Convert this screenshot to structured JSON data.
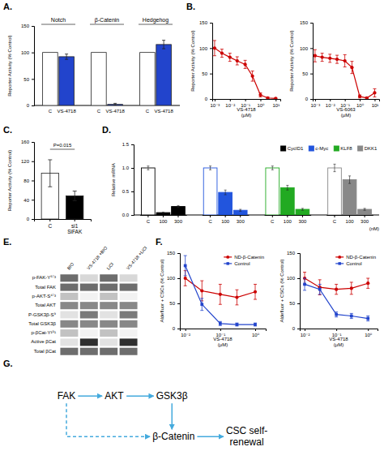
{
  "chart_data": [
    {
      "type": "bar",
      "title": "A.",
      "ylabel": "Reporter Activity (% Control)",
      "categories": [
        "Notch",
        "β-Catenin",
        "Hedgehog"
      ],
      "series": [
        {
          "name": "C",
          "color": "white",
          "values": [
            100,
            100,
            100
          ]
        },
        {
          "name": "VS-4718",
          "color": "#2244cc",
          "values": [
            92,
            2,
            115
          ],
          "errors": [
            5,
            2,
            8
          ]
        }
      ],
      "ylim": [
        0,
        150
      ],
      "yticks": [
        0,
        50,
        100,
        150
      ]
    },
    {
      "type": "line",
      "title": "B.",
      "xlabel": "VS-4718\n(μM)",
      "ylabel": "Reporter Activity (% Control)",
      "x": [
        0.001,
        0.003,
        0.01,
        0.03,
        0.1,
        0.3,
        1,
        3,
        10
      ],
      "series": [
        {
          "color": "#cc0000",
          "marker": "circle",
          "values": [
            100,
            90,
            82,
            75,
            68,
            45,
            8,
            2,
            1
          ],
          "errors": [
            15,
            8,
            8,
            8,
            8,
            10,
            4,
            2,
            1
          ]
        }
      ],
      "log": "x",
      "xlim": [
        0.0007,
        20
      ],
      "xticks": [
        {
          "value": 0.001,
          "label": "10⁻³"
        },
        {
          "value": 0.01,
          "label": "10⁻²"
        },
        {
          "value": 0.1,
          "label": "10⁻¹"
        },
        {
          "value": 1,
          "label": "10⁰"
        },
        {
          "value": 10,
          "label": "10¹"
        }
      ],
      "ylim": [
        0,
        150
      ],
      "yticks": [
        0,
        50,
        100,
        150
      ]
    },
    {
      "type": "line",
      "xlabel": "VS-6063\n(μM)",
      "ylabel": "Reporter Activity (% Control)",
      "x": [
        0.001,
        0.003,
        0.01,
        0.03,
        0.1,
        0.3,
        1,
        3,
        10
      ],
      "series": [
        {
          "color": "#cc0000",
          "marker": "circle",
          "values": [
            85,
            82,
            80,
            78,
            75,
            62,
            5,
            2,
            12
          ],
          "errors": [
            12,
            8,
            8,
            8,
            12,
            12,
            3,
            2,
            8
          ]
        }
      ],
      "log": "x",
      "xlim": [
        0.0007,
        20
      ],
      "xticks": [
        {
          "value": 0.001,
          "label": "10⁻³"
        },
        {
          "value": 0.01,
          "label": "10⁻²"
        },
        {
          "value": 0.1,
          "label": "10⁻¹"
        },
        {
          "value": 1,
          "label": "10⁰"
        },
        {
          "value": 10,
          "label": "10¹"
        }
      ],
      "ylim": [
        0,
        150
      ],
      "yticks": [
        0,
        50,
        100,
        150
      ]
    },
    {
      "type": "bar",
      "title": "C.",
      "ylabel": "Reporter Activity (% Control)",
      "xlabel": "SiFAK",
      "categories": [
        "C",
        "si1"
      ],
      "values": [
        95,
        48
      ],
      "errors": [
        28,
        10
      ],
      "colors": [
        "white",
        "black"
      ],
      "annotations": [
        "P=0.015"
      ],
      "ylim": [
        0,
        160
      ],
      "yticks": [
        0,
        40,
        80,
        120,
        160
      ]
    },
    {
      "type": "bar",
      "title": "D.",
      "ylabel": "Relative mRNA",
      "categories": [
        "C",
        "100",
        "300"
      ],
      "series": [
        {
          "name": "CycID1",
          "color": "black",
          "values": [
            1.0,
            0.05,
            0.18
          ],
          "errors": [
            0.04,
            0.01,
            0.02
          ]
        },
        {
          "name": "c-Myc",
          "color": "#2255dd",
          "values": [
            1.0,
            0.48,
            0.1
          ],
          "errors": [
            0.04,
            0.05,
            0.02
          ]
        },
        {
          "name": "KLF8",
          "color": "#22aa22",
          "values": [
            1.0,
            0.58,
            0.12
          ],
          "errors": [
            0.04,
            0.05,
            0.02
          ]
        },
        {
          "name": "DKK1",
          "color": "#888888",
          "values": [
            1.0,
            0.75,
            0.12
          ],
          "errors": [
            0.08,
            0.08,
            0.02
          ]
        }
      ],
      "annotations": [
        "(nM)"
      ],
      "legend": "upper right",
      "ylim": [
        0,
        1.5
      ],
      "yticks": [
        {
          "value": 0,
          "label": "0.0"
        },
        0.5,
        {
          "value": 1,
          "label": "1.0"
        },
        1.5
      ]
    },
    {
      "type": "heatmap",
      "title": "E.",
      "categories": [
        "BIO",
        "VS-4718 +BIO",
        "LiCl",
        "VS-4718 +LiCl"
      ],
      "rows": [
        "p-FAK-Y⁵⁷³",
        "Total FAK",
        "p-AKT-S⁴⁷³",
        "Total AKT",
        "P-GSK3β-S⁹",
        "Total GSK3β",
        "p-βCat-Y¹⁵¹",
        "Active βCat",
        "Total βCat"
      ],
      "cells": [
        [
          0.65,
          0.25,
          0.65,
          0.25
        ],
        [
          0.65,
          0.65,
          0.65,
          0.65
        ],
        [
          0.35,
          0.1,
          0.35,
          0.1
        ],
        [
          0.55,
          0.55,
          0.55,
          0.55
        ],
        [
          0.2,
          0.6,
          0.2,
          0.6
        ],
        [
          0.55,
          0.55,
          0.55,
          0.55
        ],
        [
          0.35,
          0.1,
          0.35,
          0.1
        ],
        [
          0.2,
          0.85,
          0.2,
          0.85
        ],
        [
          0.65,
          0.65,
          0.65,
          0.65
        ]
      ]
    },
    {
      "type": "line",
      "title": "F.",
      "xlabel": "VS-4718\n(μM)",
      "ylabel": "Aldefluor + CSCs (% Control)",
      "x": [
        0.01,
        0.03,
        0.1,
        0.3,
        1.0
      ],
      "series": [
        {
          "name": "ND-β-Catenin",
          "color": "#cc0000",
          "marker": "circle",
          "values": [
            100,
            75,
            68,
            62,
            73
          ],
          "errors": [
            15,
            20,
            20,
            15,
            15
          ]
        },
        {
          "name": "Control",
          "color": "#2244cc",
          "marker": "square",
          "values": [
            125,
            48,
            10,
            8,
            8
          ],
          "errors": [
            20,
            12,
            4,
            3,
            3
          ]
        }
      ],
      "log": "x",
      "xlim": [
        0.007,
        2
      ],
      "xticks": [
        {
          "value": 0.01,
          "label": "10⁻²"
        },
        {
          "value": 0.1,
          "label": "10⁻¹"
        },
        {
          "value": 1,
          "label": "10⁰"
        }
      ],
      "ylim": [
        0,
        150
      ],
      "yticks": [
        0,
        50,
        100,
        150
      ],
      "legend": "upper right"
    },
    {
      "type": "line",
      "xlabel": "VS-4718\n(μM)",
      "ylabel": "Aldefluor + CSCs (% Control)",
      "x": [
        0.01,
        0.03,
        0.1,
        0.3,
        1.0
      ],
      "series": [
        {
          "name": "ND-β-Catenin",
          "color": "#cc0000",
          "marker": "circle",
          "values": [
            100,
            82,
            78,
            80,
            90
          ],
          "errors": [
            12,
            15,
            10,
            12,
            10
          ]
        },
        {
          "name": "Control",
          "color": "#2244cc",
          "marker": "square",
          "values": [
            88,
            78,
            28,
            25,
            20
          ],
          "errors": [
            12,
            10,
            5,
            5,
            5
          ]
        }
      ],
      "log": "x",
      "xlim": [
        0.007,
        2
      ],
      "xticks": [
        {
          "value": 0.01,
          "label": "10⁻²"
        },
        {
          "value": 0.1,
          "label": "10⁻¹"
        },
        {
          "value": 1,
          "label": "10⁰"
        }
      ],
      "ylim": [
        0,
        150
      ],
      "yticks": [
        0,
        50,
        100,
        150
      ],
      "legend": "upper right"
    },
    {
      "type": "diagram",
      "title": "G.",
      "color": "#44aadd",
      "nodes": [
        "FAK",
        "AKT",
        "GSK3β",
        "β-Catenin",
        "CSC self-\nrenewal"
      ],
      "edges": [
        {
          "from": "FAK",
          "to": "AKT"
        },
        {
          "from": "AKT",
          "to": "GSK3β"
        },
        {
          "from": "GSK3β",
          "to": "β-Catenin"
        },
        {
          "from": "FAK",
          "to": "β-Catenin",
          "line_style": "dashed"
        },
        {
          "from": "β-Catenin",
          "to": "CSC self-\nrenewal"
        }
      ]
    }
  ]
}
